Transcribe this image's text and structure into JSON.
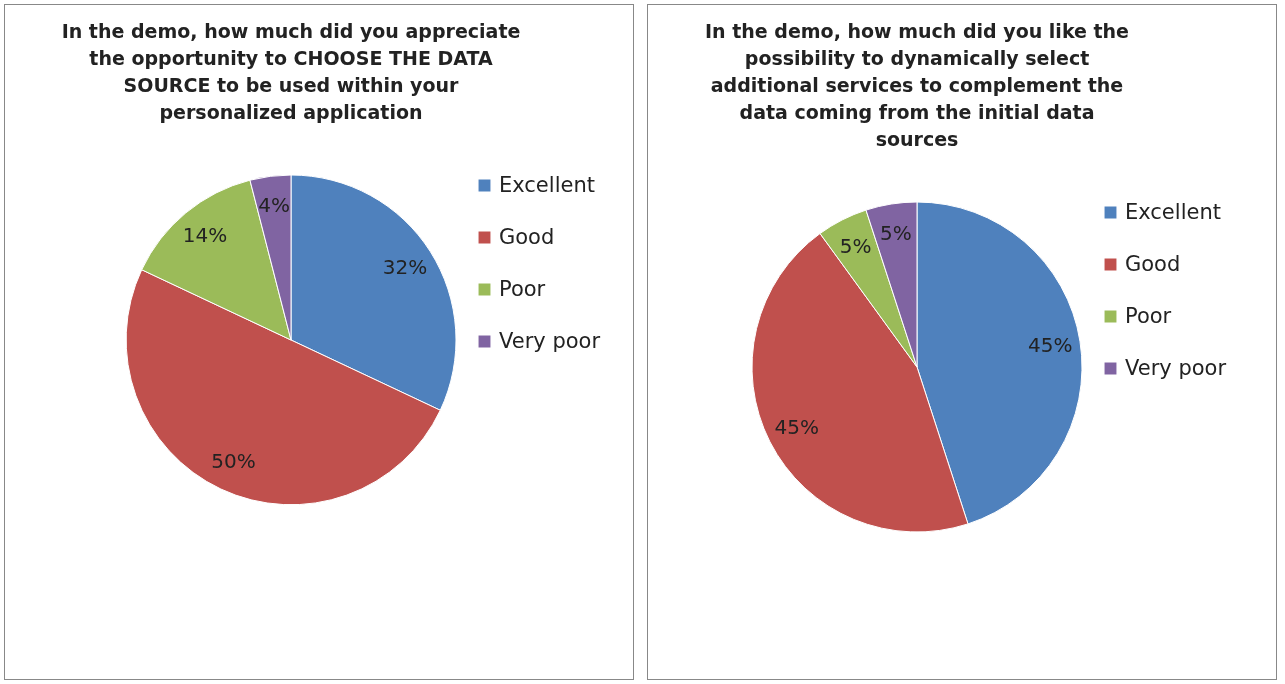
{
  "chart_data": [
    {
      "type": "pie",
      "title": "In the demo, how much did you appreciate the opportunity to CHOOSE THE DATA SOURCE to be used within your personalized application",
      "categories": [
        "Excellent",
        "Good",
        "Poor",
        "Very poor"
      ],
      "values": [
        32,
        50,
        14,
        4
      ],
      "colors": [
        "#4f81bd",
        "#c0504d",
        "#9bbb59",
        "#8064a2"
      ],
      "value_labels": [
        "32%",
        "50%",
        "14%",
        "4%"
      ],
      "legend": "right"
    },
    {
      "type": "pie",
      "title": "In the demo, how much did you like the possibility to dynamically select additional services to complement the data coming from the initial data sources",
      "categories": [
        "Excellent",
        "Good",
        "Poor",
        "Very poor"
      ],
      "values": [
        45,
        45,
        5,
        5
      ],
      "colors": [
        "#4f81bd",
        "#c0504d",
        "#9bbb59",
        "#8064a2"
      ],
      "value_labels": [
        "45%",
        "45%",
        "5%",
        "5%"
      ],
      "legend": "right"
    }
  ]
}
